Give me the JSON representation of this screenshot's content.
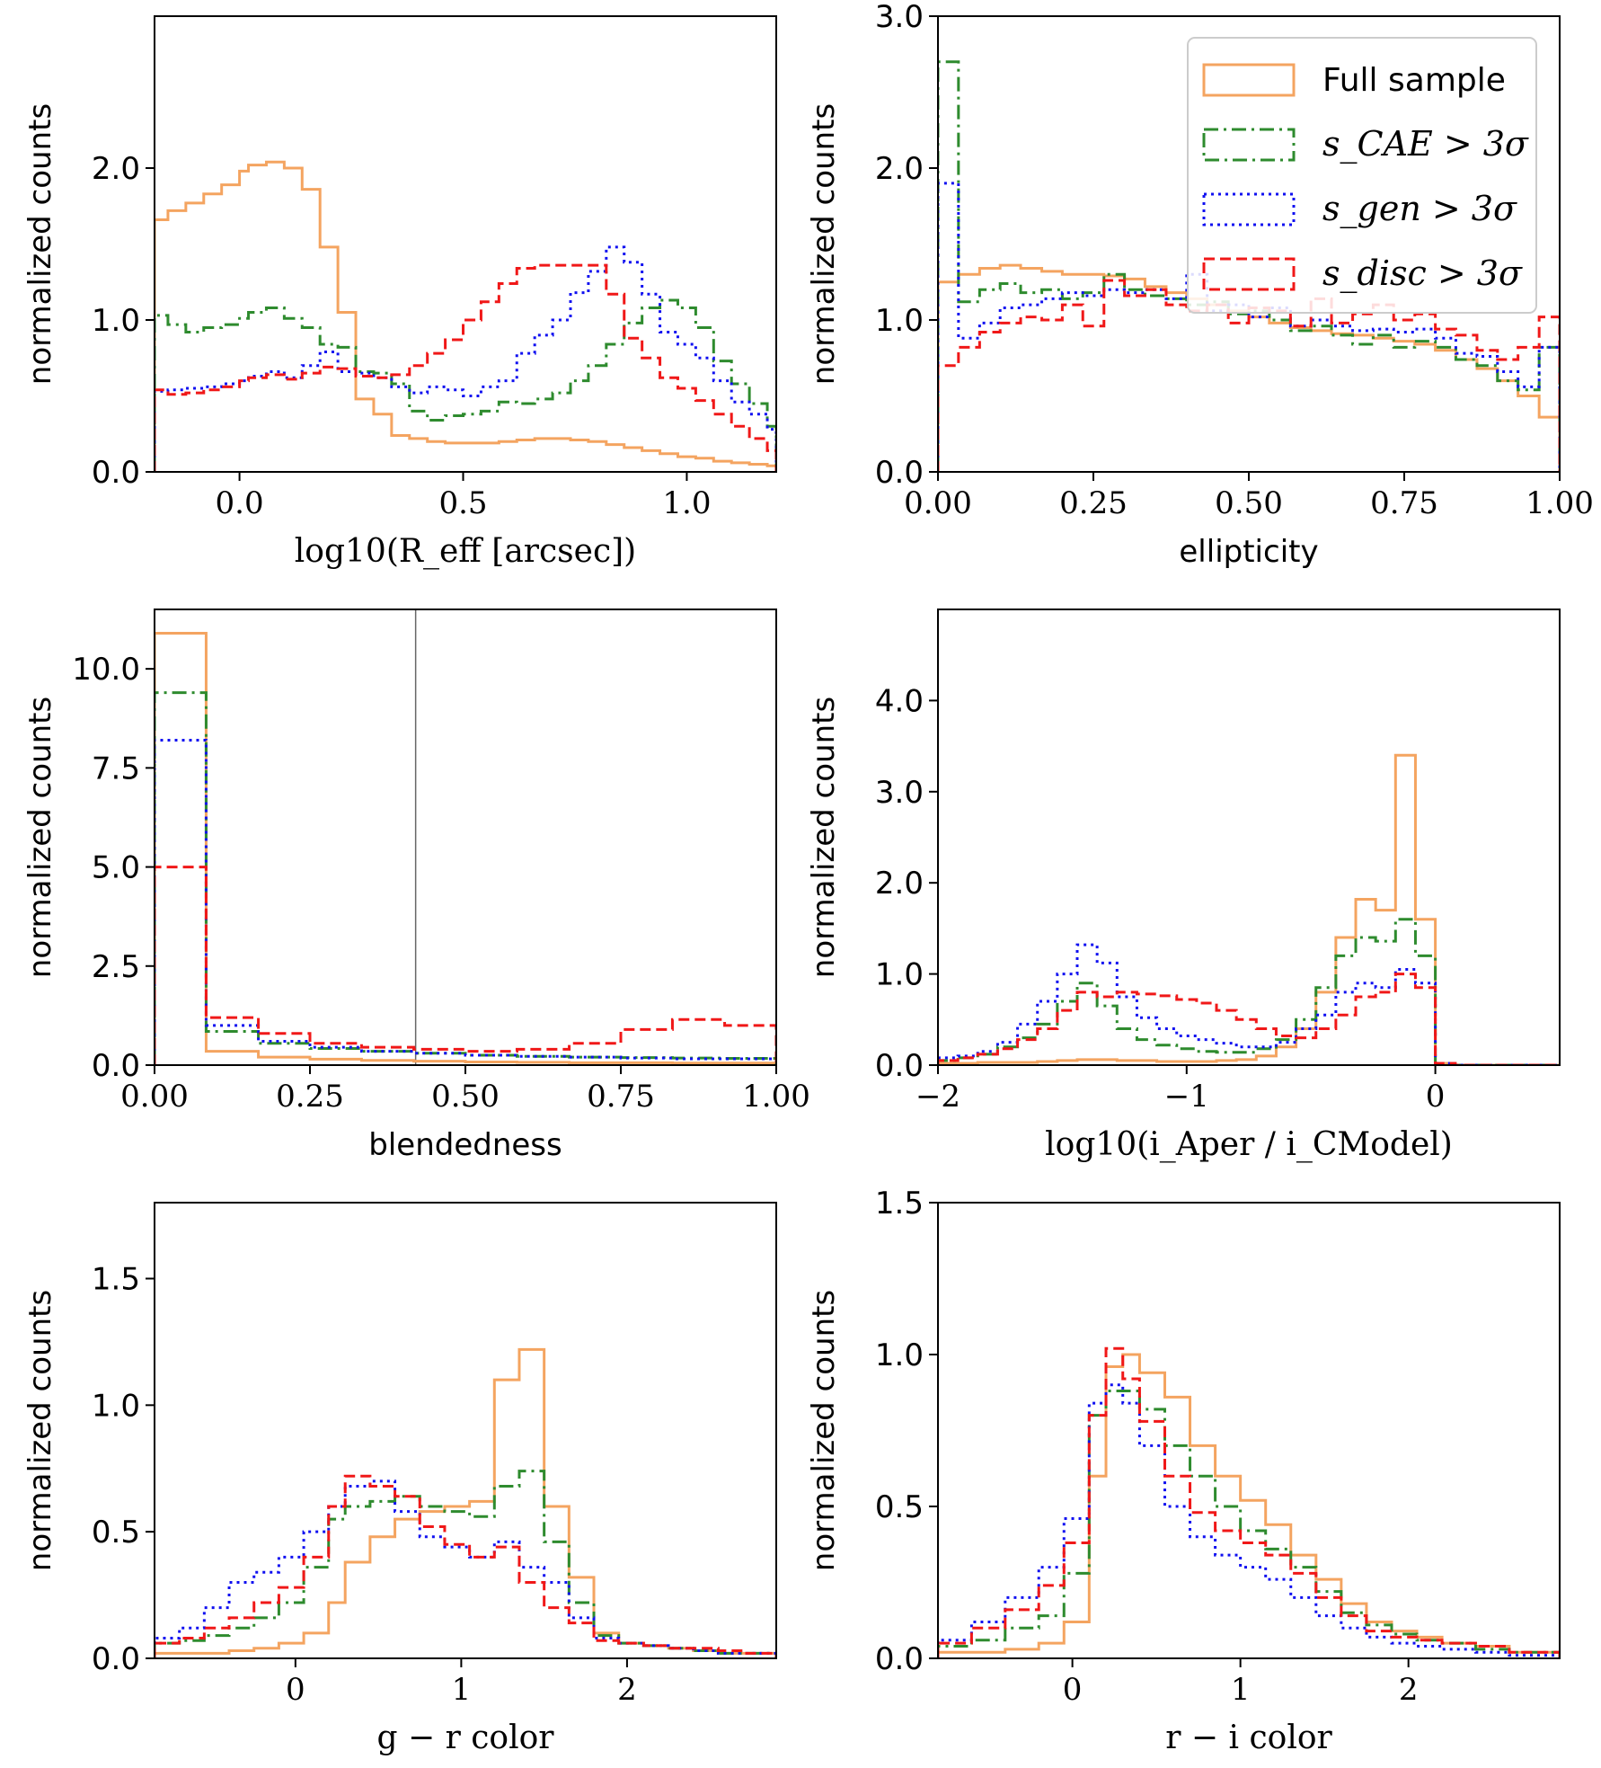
{
  "colors": {
    "full": "#f4a460",
    "cae": "#2e8b2e",
    "gen": "#1010f0",
    "disc": "#f01818",
    "vline": "#666666"
  },
  "legend": {
    "placement": "top-right of panel 2",
    "entries": [
      {
        "key": "full",
        "label": "Full sample",
        "style": "solid"
      },
      {
        "key": "cae",
        "label": "s_CAE > 3σ",
        "style": "dashdot"
      },
      {
        "key": "gen",
        "label": "s_gen > 3σ",
        "style": "dotted"
      },
      {
        "key": "disc",
        "label": "s_disc > 3σ",
        "style": "dashed"
      }
    ]
  },
  "chart_data": [
    {
      "type": "step-histogram",
      "xlabel": "log10(R_eff [arcsec])",
      "ylabel": "normalized counts",
      "xlim": [
        -0.19,
        1.2
      ],
      "ylim": [
        0,
        3.0
      ],
      "xticks": [
        0.0,
        0.5,
        1.0
      ],
      "xticklabels": [
        "0.0",
        "0.5",
        "1.0"
      ],
      "yticks": [
        0,
        1,
        2
      ],
      "yticklabels": [
        "0.0",
        "1.0",
        "2.0"
      ],
      "bin_edges": [
        -0.19,
        -0.16,
        -0.12,
        -0.08,
        -0.04,
        0.0,
        0.02,
        0.06,
        0.1,
        0.14,
        0.18,
        0.22,
        0.26,
        0.3,
        0.34,
        0.38,
        0.42,
        0.46,
        0.5,
        0.54,
        0.58,
        0.62,
        0.66,
        0.7,
        0.74,
        0.78,
        0.82,
        0.86,
        0.9,
        0.94,
        0.98,
        1.02,
        1.06,
        1.1,
        1.14,
        1.18,
        1.2
      ],
      "series": [
        {
          "key": "full",
          "values": [
            1.66,
            1.72,
            1.77,
            1.83,
            1.89,
            1.98,
            2.02,
            2.04,
            2.0,
            1.86,
            1.48,
            1.05,
            0.48,
            0.38,
            0.24,
            0.22,
            0.2,
            0.19,
            0.19,
            0.19,
            0.2,
            0.21,
            0.22,
            0.22,
            0.21,
            0.2,
            0.18,
            0.16,
            0.14,
            0.12,
            0.1,
            0.09,
            0.07,
            0.06,
            0.05,
            0.04
          ]
        },
        {
          "key": "cae",
          "values": [
            1.03,
            0.97,
            0.92,
            0.95,
            0.97,
            1.01,
            1.05,
            1.08,
            1.01,
            0.95,
            0.84,
            0.82,
            0.66,
            0.65,
            0.58,
            0.4,
            0.34,
            0.37,
            0.38,
            0.4,
            0.46,
            0.45,
            0.48,
            0.52,
            0.6,
            0.7,
            0.84,
            0.98,
            1.08,
            1.13,
            1.08,
            0.95,
            0.73,
            0.58,
            0.45,
            0.3
          ]
        },
        {
          "key": "gen",
          "values": [
            0.53,
            0.54,
            0.55,
            0.56,
            0.58,
            0.6,
            0.63,
            0.66,
            0.62,
            0.7,
            0.79,
            0.66,
            0.65,
            0.62,
            0.56,
            0.52,
            0.56,
            0.54,
            0.5,
            0.56,
            0.6,
            0.78,
            0.9,
            1.0,
            1.18,
            1.32,
            1.48,
            1.38,
            1.17,
            0.92,
            0.84,
            0.75,
            0.6,
            0.46,
            0.38,
            0.28
          ]
        },
        {
          "key": "disc",
          "values": [
            0.54,
            0.51,
            0.52,
            0.54,
            0.56,
            0.6,
            0.62,
            0.64,
            0.61,
            0.65,
            0.69,
            0.68,
            0.63,
            0.62,
            0.64,
            0.7,
            0.78,
            0.87,
            1.0,
            1.12,
            1.24,
            1.34,
            1.36,
            1.36,
            1.36,
            1.36,
            1.17,
            0.88,
            0.75,
            0.62,
            0.55,
            0.47,
            0.38,
            0.3,
            0.22,
            0.14
          ]
        }
      ]
    },
    {
      "type": "step-histogram",
      "xlabel": "ellipticity",
      "ylabel": "normalized counts",
      "xlim": [
        0,
        1
      ],
      "ylim": [
        0,
        3.0
      ],
      "xticks": [
        0,
        0.25,
        0.5,
        0.75,
        1.0
      ],
      "xticklabels": [
        "0.00",
        "0.25",
        "0.50",
        "0.75",
        "1.00"
      ],
      "yticks": [
        0,
        1,
        2,
        3
      ],
      "yticklabels": [
        "0.0",
        "1.0",
        "2.0",
        "3.0"
      ],
      "bin_edges": [
        0,
        0.033,
        0.067,
        0.1,
        0.133,
        0.167,
        0.2,
        0.233,
        0.267,
        0.3,
        0.333,
        0.367,
        0.4,
        0.433,
        0.467,
        0.5,
        0.533,
        0.567,
        0.6,
        0.633,
        0.667,
        0.7,
        0.733,
        0.767,
        0.8,
        0.833,
        0.867,
        0.9,
        0.933,
        0.967,
        1.0
      ],
      "series": [
        {
          "key": "full",
          "values": [
            1.25,
            1.3,
            1.34,
            1.36,
            1.34,
            1.32,
            1.3,
            1.3,
            1.29,
            1.27,
            1.22,
            1.18,
            1.14,
            1.1,
            1.06,
            1.02,
            0.98,
            0.95,
            0.93,
            0.91,
            0.9,
            0.88,
            0.86,
            0.84,
            0.8,
            0.74,
            0.68,
            0.6,
            0.5,
            0.36
          ]
        },
        {
          "key": "cae",
          "values": [
            2.7,
            1.12,
            1.2,
            1.24,
            1.18,
            1.2,
            1.14,
            1.18,
            1.3,
            1.2,
            1.16,
            1.14,
            1.1,
            1.12,
            1.04,
            1.06,
            1.0,
            0.93,
            0.96,
            0.9,
            0.84,
            0.9,
            0.82,
            0.86,
            0.82,
            0.74,
            0.7,
            0.6,
            0.54,
            0.82
          ]
        },
        {
          "key": "gen",
          "values": [
            1.9,
            0.88,
            0.98,
            1.08,
            1.1,
            1.14,
            1.18,
            1.16,
            1.2,
            1.18,
            1.2,
            1.14,
            1.3,
            1.06,
            1.1,
            1.02,
            1.08,
            0.96,
            1.0,
            0.96,
            0.93,
            0.94,
            0.92,
            0.94,
            0.88,
            0.78,
            0.76,
            0.66,
            0.56,
            0.82
          ]
        },
        {
          "key": "disc",
          "values": [
            0.7,
            0.82,
            0.92,
            0.98,
            1.02,
            1.0,
            1.1,
            0.96,
            1.26,
            1.16,
            1.2,
            1.1,
            1.06,
            1.1,
            0.98,
            1.08,
            1.06,
            0.96,
            1.14,
            0.98,
            1.04,
            1.1,
            1.0,
            1.04,
            0.94,
            0.9,
            0.8,
            0.74,
            0.82,
            1.02
          ]
        }
      ]
    },
    {
      "type": "step-histogram",
      "xlabel": "blendedness",
      "ylabel": "normalized counts",
      "xlim": [
        0,
        1
      ],
      "ylim": [
        0,
        11.5
      ],
      "xticks": [
        0,
        0.25,
        0.5,
        0.75,
        1.0
      ],
      "xticklabels": [
        "0.00",
        "0.25",
        "0.50",
        "0.75",
        "1.00"
      ],
      "yticks": [
        0,
        2.5,
        5,
        7.5,
        10
      ],
      "yticklabels": [
        "0.0",
        "2.5",
        "5.0",
        "7.5",
        "10.0"
      ],
      "vline_x": 0.42,
      "bin_edges": [
        0,
        0.083,
        0.167,
        0.25,
        0.333,
        0.417,
        0.5,
        0.583,
        0.667,
        0.75,
        0.833,
        0.917,
        1.0
      ],
      "series": [
        {
          "key": "full",
          "values": [
            10.9,
            0.35,
            0.2,
            0.15,
            0.12,
            0.1,
            0.08,
            0.07,
            0.06,
            0.06,
            0.05,
            0.05
          ]
        },
        {
          "key": "cae",
          "values": [
            9.4,
            0.85,
            0.55,
            0.42,
            0.35,
            0.3,
            0.25,
            0.22,
            0.2,
            0.19,
            0.18,
            0.17
          ]
        },
        {
          "key": "gen",
          "values": [
            8.2,
            1.0,
            0.6,
            0.45,
            0.35,
            0.3,
            0.25,
            0.22,
            0.2,
            0.18,
            0.16,
            0.16
          ]
        },
        {
          "key": "disc",
          "values": [
            5.0,
            1.2,
            0.8,
            0.55,
            0.45,
            0.4,
            0.35,
            0.4,
            0.55,
            0.9,
            1.15,
            1.0
          ]
        }
      ]
    },
    {
      "type": "step-histogram",
      "xlabel": "log10(i_Aper / i_CModel)",
      "ylabel": "normalized counts",
      "xlim": [
        -2.0,
        0.5
      ],
      "ylim": [
        0,
        5.0
      ],
      "xticks": [
        -2,
        -1,
        0
      ],
      "xticklabels": [
        "−2",
        "−1",
        "0"
      ],
      "yticks": [
        0,
        1,
        2,
        3,
        4
      ],
      "yticklabels": [
        "0.0",
        "1.0",
        "2.0",
        "3.0",
        "4.0"
      ],
      "bin_edges": [
        -2.0,
        -1.92,
        -1.84,
        -1.76,
        -1.68,
        -1.6,
        -1.52,
        -1.44,
        -1.36,
        -1.28,
        -1.2,
        -1.12,
        -1.04,
        -0.96,
        -0.88,
        -0.8,
        -0.72,
        -0.64,
        -0.56,
        -0.48,
        -0.4,
        -0.32,
        -0.24,
        -0.16,
        -0.08,
        0.0,
        0.08,
        0.5
      ],
      "series": [
        {
          "key": "full",
          "values": [
            0.02,
            0.02,
            0.03,
            0.03,
            0.03,
            0.04,
            0.05,
            0.06,
            0.06,
            0.05,
            0.05,
            0.04,
            0.04,
            0.04,
            0.05,
            0.06,
            0.1,
            0.2,
            0.4,
            0.8,
            1.4,
            1.82,
            1.7,
            3.4,
            1.6,
            0.02,
            0.0
          ]
        },
        {
          "key": "cae",
          "values": [
            0.05,
            0.08,
            0.12,
            0.2,
            0.3,
            0.45,
            0.7,
            0.9,
            0.65,
            0.4,
            0.28,
            0.22,
            0.18,
            0.15,
            0.14,
            0.14,
            0.18,
            0.28,
            0.5,
            0.85,
            1.2,
            1.4,
            1.36,
            1.6,
            1.2,
            0.02,
            0.0
          ]
        },
        {
          "key": "gen",
          "values": [
            0.08,
            0.1,
            0.15,
            0.25,
            0.45,
            0.7,
            1.0,
            1.32,
            1.12,
            0.75,
            0.52,
            0.4,
            0.32,
            0.28,
            0.24,
            0.2,
            0.2,
            0.25,
            0.4,
            0.55,
            0.8,
            0.9,
            0.85,
            1.05,
            0.9,
            0.02,
            0.0
          ]
        },
        {
          "key": "disc",
          "values": [
            0.05,
            0.08,
            0.12,
            0.18,
            0.28,
            0.4,
            0.6,
            0.8,
            0.75,
            0.8,
            0.78,
            0.76,
            0.72,
            0.68,
            0.6,
            0.5,
            0.4,
            0.32,
            0.3,
            0.4,
            0.55,
            0.75,
            0.8,
            1.0,
            0.85,
            0.02,
            0.0
          ]
        }
      ]
    },
    {
      "type": "step-histogram",
      "xlabel": "g − r color",
      "ylabel": "normalized counts",
      "xlim": [
        -0.85,
        2.9
      ],
      "ylim": [
        0,
        1.8
      ],
      "xticks": [
        0,
        1,
        2
      ],
      "xticklabels": [
        "0",
        "1",
        "2"
      ],
      "yticks": [
        0,
        0.5,
        1.0,
        1.5
      ],
      "yticklabels": [
        "0.0",
        "0.5",
        "1.0",
        "1.5"
      ],
      "bin_edges": [
        -0.85,
        -0.7,
        -0.55,
        -0.4,
        -0.25,
        -0.1,
        0.05,
        0.2,
        0.3,
        0.45,
        0.6,
        0.75,
        0.9,
        1.05,
        1.2,
        1.35,
        1.5,
        1.65,
        1.8,
        1.95,
        2.1,
        2.25,
        2.4,
        2.55,
        2.7,
        2.9
      ],
      "series": [
        {
          "key": "full",
          "values": [
            0.02,
            0.02,
            0.02,
            0.03,
            0.04,
            0.06,
            0.1,
            0.22,
            0.38,
            0.48,
            0.55,
            0.58,
            0.6,
            0.62,
            1.1,
            1.22,
            0.6,
            0.32,
            0.1,
            0.06,
            0.05,
            0.04,
            0.03,
            0.02,
            0.02
          ]
        },
        {
          "key": "cae",
          "values": [
            0.06,
            0.07,
            0.09,
            0.12,
            0.16,
            0.22,
            0.36,
            0.55,
            0.6,
            0.62,
            0.64,
            0.6,
            0.58,
            0.56,
            0.68,
            0.74,
            0.46,
            0.22,
            0.09,
            0.06,
            0.05,
            0.04,
            0.03,
            0.02,
            0.02
          ]
        },
        {
          "key": "gen",
          "values": [
            0.08,
            0.12,
            0.2,
            0.3,
            0.34,
            0.4,
            0.5,
            0.6,
            0.68,
            0.7,
            0.58,
            0.48,
            0.44,
            0.4,
            0.46,
            0.36,
            0.3,
            0.16,
            0.08,
            0.06,
            0.05,
            0.04,
            0.03,
            0.02,
            0.02
          ]
        },
        {
          "key": "disc",
          "values": [
            0.06,
            0.08,
            0.12,
            0.16,
            0.22,
            0.28,
            0.4,
            0.6,
            0.72,
            0.68,
            0.64,
            0.52,
            0.45,
            0.4,
            0.44,
            0.3,
            0.2,
            0.14,
            0.07,
            0.06,
            0.05,
            0.04,
            0.04,
            0.03,
            0.02
          ]
        }
      ]
    },
    {
      "type": "step-histogram",
      "xlabel": "r − i color",
      "ylabel": "normalized counts",
      "xlim": [
        -0.8,
        2.9
      ],
      "ylim": [
        0,
        1.5
      ],
      "xticks": [
        0,
        1,
        2
      ],
      "xticklabels": [
        "0",
        "1",
        "2"
      ],
      "yticks": [
        0,
        0.5,
        1.0,
        1.5
      ],
      "yticklabels": [
        "0.0",
        "0.5",
        "1.0",
        "1.5"
      ],
      "bin_edges": [
        -0.8,
        -0.6,
        -0.4,
        -0.2,
        -0.05,
        0.1,
        0.2,
        0.3,
        0.4,
        0.55,
        0.7,
        0.85,
        1.0,
        1.15,
        1.3,
        1.45,
        1.6,
        1.75,
        1.9,
        2.05,
        2.2,
        2.4,
        2.6,
        2.9
      ],
      "series": [
        {
          "key": "full",
          "values": [
            0.02,
            0.02,
            0.03,
            0.05,
            0.12,
            0.6,
            0.96,
            1.0,
            0.94,
            0.86,
            0.7,
            0.6,
            0.52,
            0.44,
            0.34,
            0.26,
            0.18,
            0.12,
            0.09,
            0.07,
            0.05,
            0.04,
            0.02
          ]
        },
        {
          "key": "cae",
          "values": [
            0.04,
            0.06,
            0.1,
            0.14,
            0.28,
            0.8,
            0.88,
            0.88,
            0.82,
            0.7,
            0.6,
            0.5,
            0.42,
            0.36,
            0.3,
            0.22,
            0.15,
            0.11,
            0.08,
            0.06,
            0.05,
            0.03,
            0.02
          ]
        },
        {
          "key": "gen",
          "values": [
            0.06,
            0.12,
            0.2,
            0.3,
            0.46,
            0.84,
            0.9,
            0.84,
            0.7,
            0.5,
            0.4,
            0.34,
            0.3,
            0.26,
            0.2,
            0.14,
            0.1,
            0.07,
            0.05,
            0.04,
            0.03,
            0.02,
            0.01
          ]
        },
        {
          "key": "disc",
          "values": [
            0.05,
            0.1,
            0.16,
            0.24,
            0.38,
            0.8,
            1.02,
            0.92,
            0.78,
            0.6,
            0.48,
            0.42,
            0.38,
            0.34,
            0.28,
            0.2,
            0.14,
            0.09,
            0.07,
            0.06,
            0.05,
            0.04,
            0.02
          ]
        }
      ]
    }
  ]
}
